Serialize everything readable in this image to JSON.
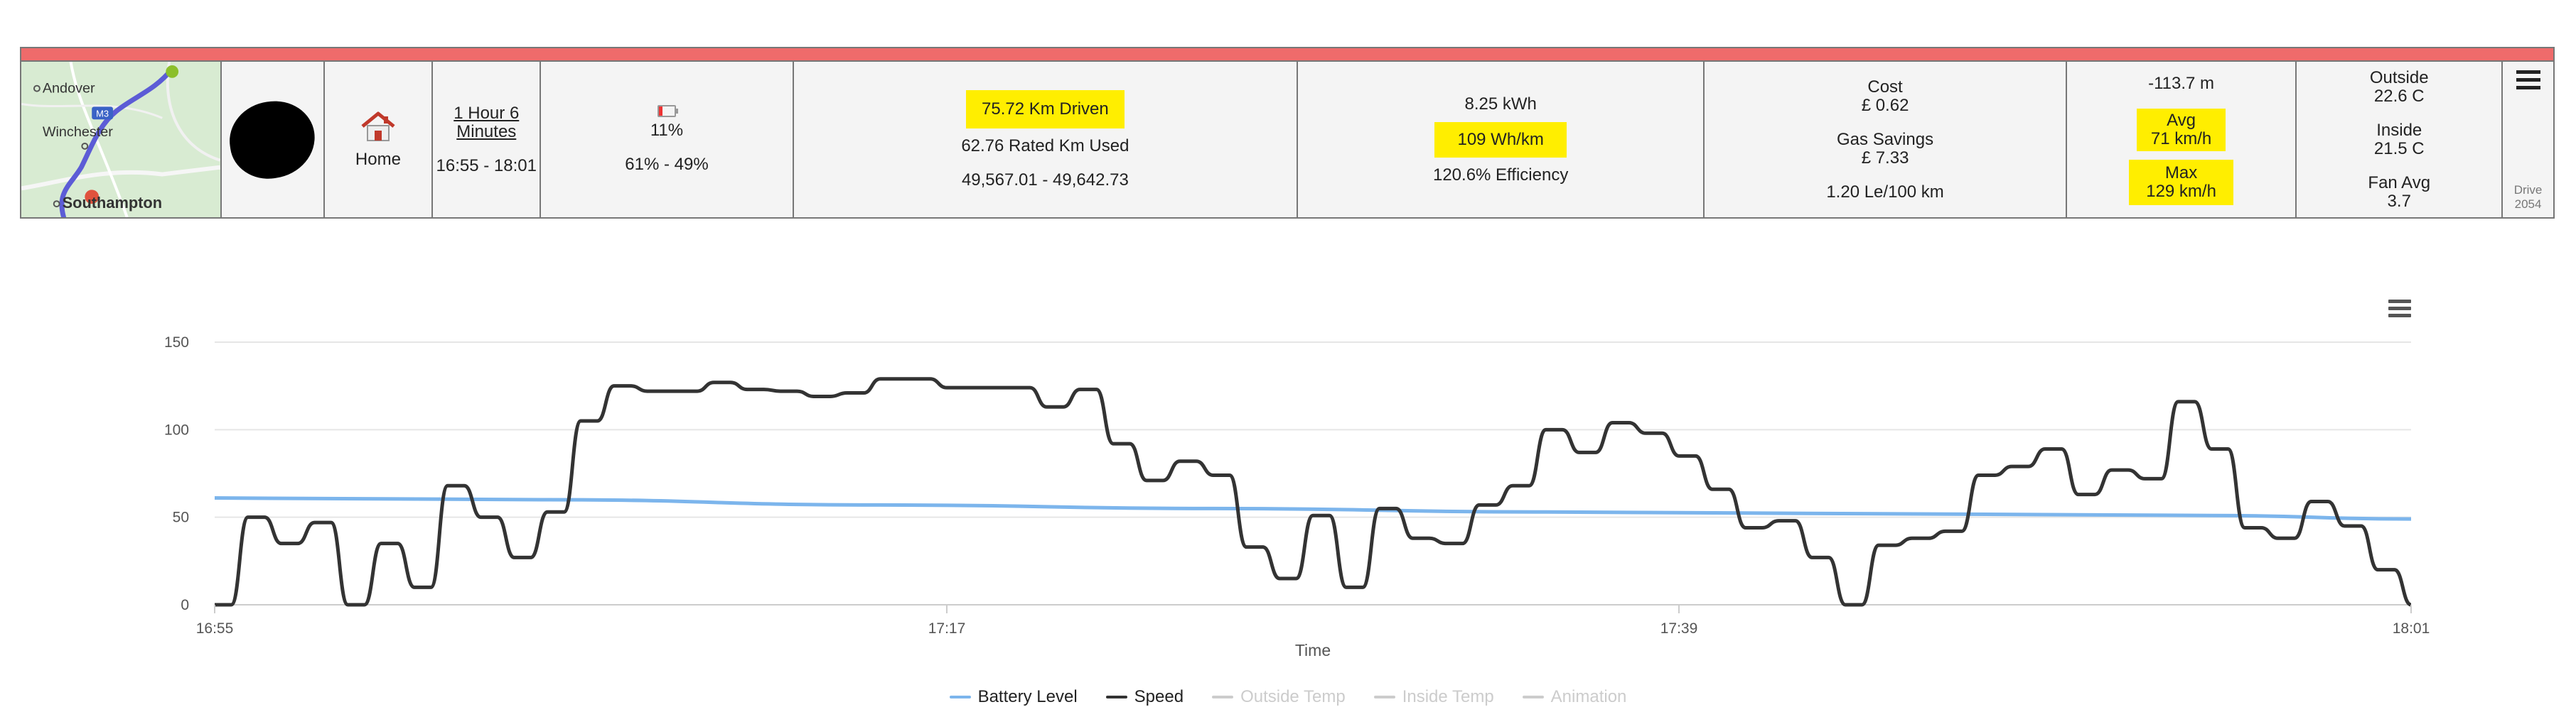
{
  "summary": {
    "map": {
      "labels": [
        "Andover",
        "Winchester",
        "Southampton"
      ],
      "road_badge": "M3"
    },
    "location": {
      "label": "Home"
    },
    "duration": {
      "length": "1 Hour 6 Minutes",
      "range": "16:55 - 18:01"
    },
    "battery": {
      "percent": "11%",
      "range": "61% - 49%"
    },
    "distance": {
      "driven": "75.72 Km Driven",
      "rated": "62.76 Rated Km Used",
      "odometer": "49,567.01 - 49,642.73"
    },
    "energy": {
      "kwh": "8.25 kWh",
      "consumption": "109 Wh/km",
      "efficiency": "120.6% Efficiency"
    },
    "cost": {
      "title": "Cost",
      "value": "£ 0.62",
      "gas_title": "Gas Savings",
      "gas_value": "£ 7.33",
      "equiv": "1.20 Le/100 km"
    },
    "speed": {
      "elevation": "-113.7 m",
      "avg_label": "Avg",
      "avg_value": "71 km/h",
      "max_label": "Max",
      "max_value": "129 km/h"
    },
    "temps": {
      "outside_label": "Outside",
      "outside_value": "22.6 C",
      "inside_label": "Inside",
      "inside_value": "21.5 C",
      "fan_label": "Fan Avg",
      "fan_value": "3.7"
    },
    "drive": {
      "label": "Drive",
      "number": "2054"
    }
  },
  "chart_data": {
    "type": "line",
    "xlabel": "Time",
    "ylabel": "",
    "x_range": [
      "16:55",
      "18:01"
    ],
    "x_range_minutes": [
      0,
      66
    ],
    "ylim": [
      0,
      150
    ],
    "y_ticks": [
      0,
      50,
      100,
      150
    ],
    "x_ticks": [
      "16:55",
      "17:17",
      "17:39",
      "18:01"
    ],
    "x_tick_minutes": [
      0,
      22,
      44,
      66
    ],
    "grid": true,
    "legend_position": "bottom",
    "series": [
      {
        "name": "Battery Level",
        "color": "#7cb5ec",
        "visible": true,
        "x": [
          0,
          10,
          20,
          30,
          40,
          50,
          60,
          66
        ],
        "values": [
          61,
          60,
          57,
          55,
          53,
          52,
          51,
          49
        ]
      },
      {
        "name": "Speed",
        "color": "#333333",
        "visible": true,
        "x": [
          0,
          0.5,
          1,
          1.5,
          2,
          2.5,
          3,
          3.5,
          4,
          4.5,
          5,
          5.5,
          6,
          6.5,
          7,
          7.5,
          8,
          8.5,
          9,
          9.5,
          10,
          10.5,
          11,
          11.5,
          12,
          12.5,
          13,
          13.5,
          14,
          14.5,
          15,
          15.5,
          16,
          16.5,
          17,
          17.5,
          18,
          18.5,
          19,
          19.5,
          20,
          20.5,
          21,
          21.5,
          22,
          22.5,
          23,
          23.5,
          24,
          24.5,
          25,
          25.5,
          26,
          26.5,
          27,
          27.5,
          28,
          28.5,
          29,
          29.5,
          30,
          30.5,
          31,
          31.5,
          32,
          32.5,
          33,
          33.5,
          34,
          34.5,
          35,
          35.5,
          36,
          36.5,
          37,
          37.5,
          38,
          38.5,
          39,
          39.5,
          40,
          40.5,
          41,
          41.5,
          42,
          42.5,
          43,
          43.5,
          44,
          44.5,
          45,
          45.5,
          46,
          46.5,
          47,
          47.5,
          48,
          48.5,
          49,
          49.5,
          50,
          50.5,
          51,
          51.5,
          52,
          52.5,
          53,
          53.5,
          54,
          54.5,
          55,
          55.5,
          56,
          56.5,
          57,
          57.5,
          58,
          58.5,
          59,
          59.5,
          60,
          60.5,
          61,
          61.5,
          62,
          62.5,
          63,
          63.5,
          64,
          64.5,
          65,
          65.5,
          66
        ],
        "values": [
          0,
          0,
          50,
          50,
          35,
          35,
          47,
          47,
          0,
          0,
          35,
          35,
          10,
          10,
          68,
          68,
          50,
          50,
          27,
          27,
          53,
          53,
          105,
          105,
          125,
          125,
          122,
          122,
          122,
          122,
          127,
          127,
          123,
          123,
          122,
          122,
          119,
          119,
          121,
          121,
          129,
          129,
          129,
          129,
          124,
          124,
          124,
          124,
          124,
          124,
          113,
          113,
          123,
          123,
          92,
          92,
          71,
          71,
          82,
          82,
          74,
          74,
          33,
          33,
          15,
          15,
          51,
          51,
          10,
          10,
          55,
          55,
          38,
          38,
          35,
          35,
          57,
          57,
          68,
          68,
          100,
          100,
          87,
          87,
          104,
          104,
          98,
          98,
          85,
          85,
          66,
          66,
          44,
          44,
          48,
          48,
          27,
          27,
          0,
          0,
          34,
          34,
          38,
          38,
          42,
          42,
          74,
          74,
          79,
          79,
          89,
          89,
          63,
          63,
          77,
          77,
          72,
          72,
          116,
          116,
          89,
          89,
          44,
          44,
          38,
          38,
          59,
          59,
          45,
          45,
          20,
          20,
          0
        ]
      },
      {
        "name": "Outside Temp",
        "color": "#cccccc",
        "visible": false
      },
      {
        "name": "Inside Temp",
        "color": "#cccccc",
        "visible": false
      },
      {
        "name": "Animation",
        "color": "#cccccc",
        "visible": false
      }
    ]
  }
}
